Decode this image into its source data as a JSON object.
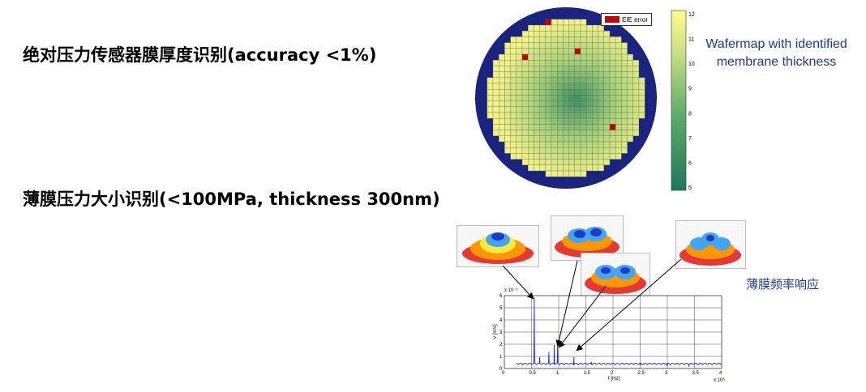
{
  "headings": {
    "h1": "绝对压力传感器膜厚度识别(accuracy <1%)",
    "h2": "薄膜压力大小识别(<100MPa, thickness 300nm)"
  },
  "wafermap": {
    "caption_line1": "Wafermap with identified",
    "caption_line2": "membrane thickness",
    "legend_label": "EIE error",
    "colorbar_ticks": [
      "12",
      "11",
      "10",
      "9",
      "8",
      "7",
      "6",
      "5"
    ],
    "colors": {
      "ring": "#1a237e",
      "low": "#2e8b57",
      "high": "#fffb8c",
      "error": "#c00000"
    }
  },
  "frequency_label": "薄膜频率响应",
  "spectrum": {
    "y_exponent": "x 10⁻³",
    "x_exponent": "x 10⁵",
    "ylabel": "v [m/s]",
    "xlabel": "f [Hz]",
    "yticks": [
      "6",
      "5",
      "4",
      "3",
      "2",
      "1",
      "0"
    ],
    "xticks": [
      "0",
      "0.5",
      "1",
      "1.5",
      "2",
      "2.5",
      "3",
      "3.5",
      "4"
    ]
  },
  "chart_data": {
    "type": "line",
    "xlabel": "f [Hz]",
    "ylabel": "v [m/s]",
    "xlim": [
      0,
      400000
    ],
    "ylim": [
      0,
      0.006
    ],
    "peaks": [
      {
        "x": 55000,
        "y": 0.0058
      },
      {
        "x": 65000,
        "y": 0.0009
      },
      {
        "x": 82000,
        "y": 0.0013
      },
      {
        "x": 92000,
        "y": 0.0019
      },
      {
        "x": 98000,
        "y": 0.0021
      },
      {
        "x": 128000,
        "y": 0.0009
      },
      {
        "x": 160000,
        "y": 0.0005
      },
      {
        "x": 250000,
        "y": 0.0003
      },
      {
        "x": 300000,
        "y": 0.0002
      },
      {
        "x": 340000,
        "y": 0.0002
      }
    ]
  }
}
